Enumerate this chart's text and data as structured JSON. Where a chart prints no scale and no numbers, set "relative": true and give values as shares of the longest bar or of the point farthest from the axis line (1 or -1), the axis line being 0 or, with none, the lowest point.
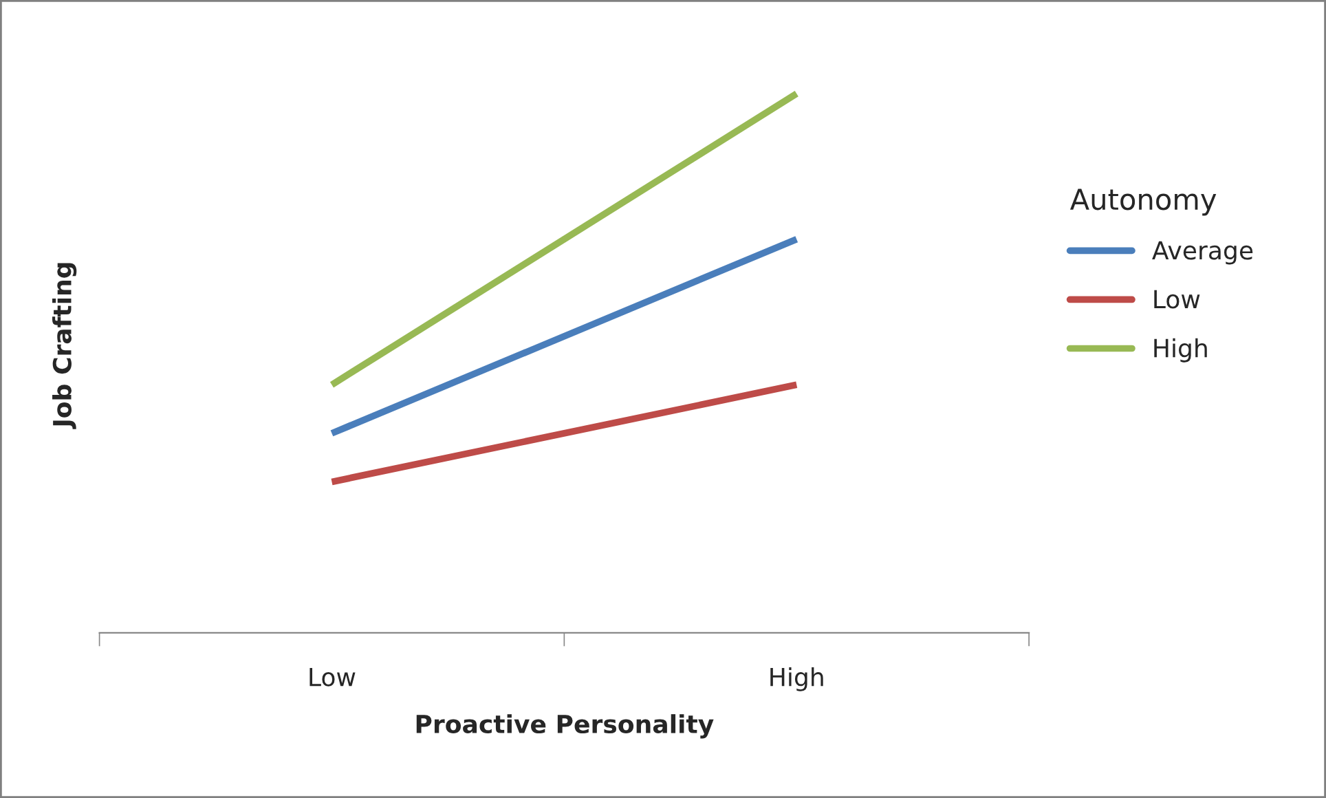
{
  "chart_data": {
    "type": "line",
    "relative": true,
    "xlabel": "Proactive Personality",
    "ylabel": "Job Crafting",
    "legend_title": "Autonomy",
    "legend": "right",
    "grid": false,
    "categories": [
      "Low",
      "High"
    ],
    "series": [
      {
        "name": "Average",
        "color": "#4a7ebb",
        "values": [
          0.37,
          0.73
        ]
      },
      {
        "name": "Low",
        "color": "#be4b48",
        "values": [
          0.28,
          0.46
        ]
      },
      {
        "name": "High",
        "color": "#98b954",
        "values": [
          0.46,
          1.0
        ]
      }
    ]
  }
}
